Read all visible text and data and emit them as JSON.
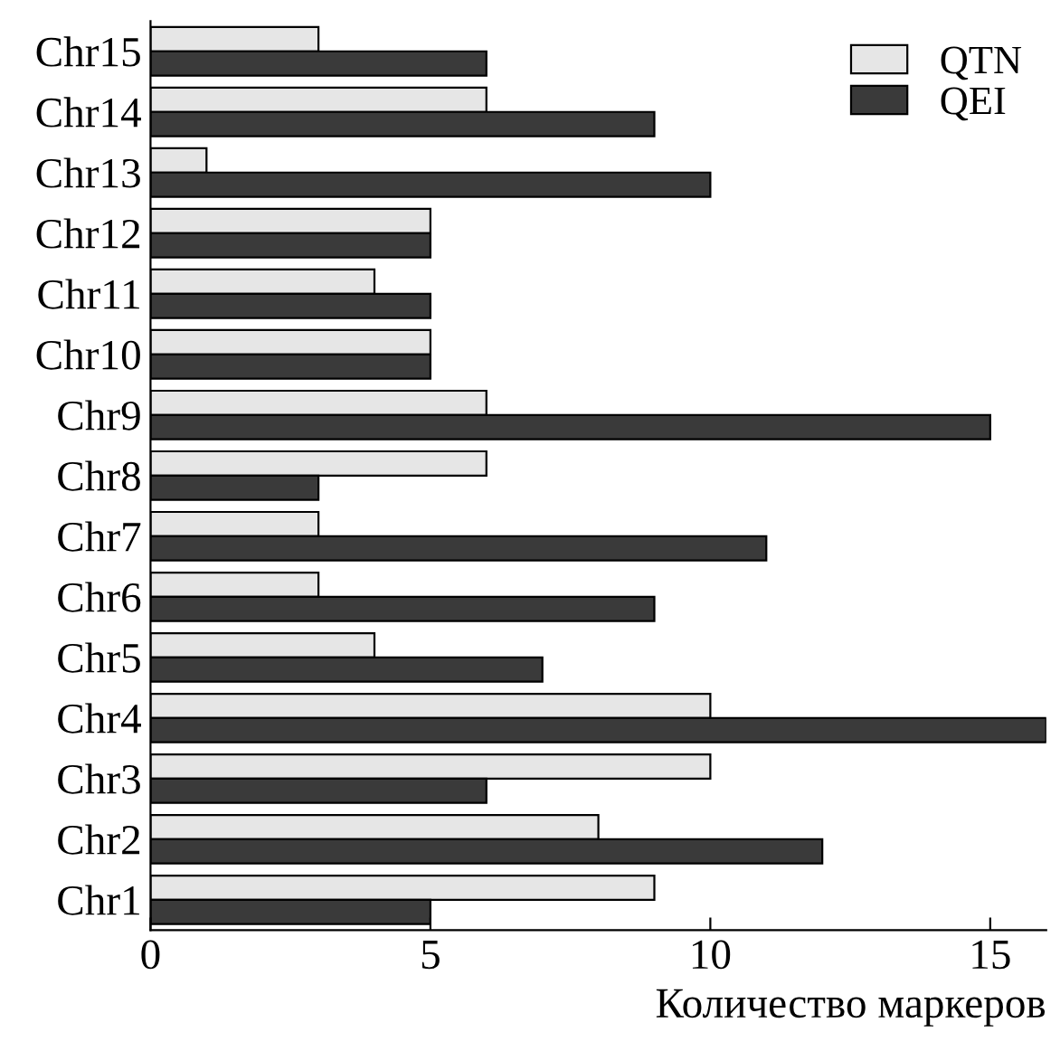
{
  "chart_data": {
    "type": "bar",
    "orientation": "horizontal",
    "xlabel": "Количество маркеров",
    "categories": [
      "Chr15",
      "Chr14",
      "Chr13",
      "Chr12",
      "Chr11",
      "Chr10",
      "Chr9",
      "Chr8",
      "Chr7",
      "Chr6",
      "Chr5",
      "Chr4",
      "Chr3",
      "Chr2",
      "Chr1"
    ],
    "series": [
      {
        "name": "QTN",
        "color": "#e6e6e6",
        "values": [
          3,
          6,
          1,
          5,
          4,
          5,
          6,
          6,
          3,
          3,
          4,
          10,
          10,
          8,
          9
        ]
      },
      {
        "name": "QEI",
        "color": "#3a3a3a",
        "values": [
          6,
          9,
          10,
          5,
          5,
          5,
          15,
          3,
          11,
          9,
          7,
          16,
          6,
          12,
          5
        ]
      }
    ],
    "xlim": [
      0,
      16
    ],
    "xticks": [
      0,
      5,
      10,
      15
    ],
    "grid": false,
    "legend": "top right"
  }
}
